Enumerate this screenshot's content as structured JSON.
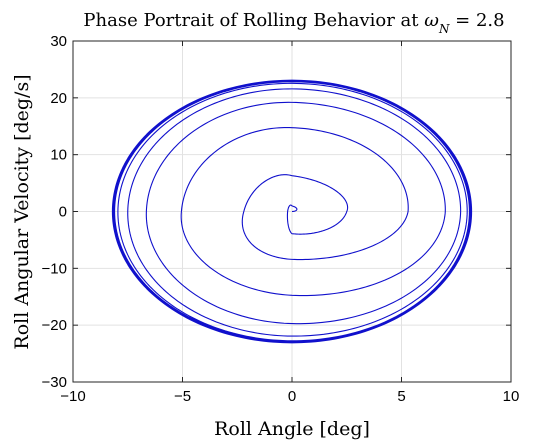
{
  "chart_data": {
    "type": "line",
    "title": "Phase Portrait of Rolling Behavior at ",
    "title_math": {
      "symbol": "ω",
      "subscript": "N",
      "suffix": " = 2.8"
    },
    "xlabel": "Roll Angle [deg]",
    "ylabel": "Roll Angular Velocity [deg/s]",
    "xlim": [
      -10,
      10
    ],
    "ylim": [
      -30,
      30
    ],
    "xticks": [
      -10,
      -5,
      0,
      5,
      10
    ],
    "xtick_labels": [
      "−10",
      "−5",
      "0",
      "5",
      "10"
    ],
    "yticks": [
      -30,
      -20,
      -10,
      0,
      10,
      20,
      30
    ],
    "ytick_labels": [
      "−30",
      "−20",
      "−10",
      "0",
      "10",
      "20",
      "30"
    ],
    "grid": true,
    "legend": null,
    "series": [
      {
        "line_color": "#1010cc",
        "description_of_curve": "phase trajectory spiraling outward from origin to a limit cycle",
        "origin": [
          0,
          0
        ],
        "limit_cycle": {
          "x_amplitude": 8.2,
          "y_amplitude": 23.1
        },
        "turns": [
          {
            "x_min": -0.4,
            "x_max": 2.5,
            "y_min": -5.2,
            "y_max": 3.9
          },
          {
            "x_min": -4.0,
            "x_max": 5.3,
            "y_min": -9.5,
            "y_max": 13.5
          },
          {
            "x_min": -6.1,
            "x_max": 7.0,
            "y_min": -16.5,
            "y_max": 18.5
          },
          {
            "x_min": -7.2,
            "x_max": 7.7,
            "y_min": -20.8,
            "y_max": 21.3
          },
          {
            "x_min": -7.8,
            "x_max": 8.0,
            "y_min": -22.3,
            "y_max": 22.4
          },
          {
            "x_min": -8.1,
            "x_max": 8.15,
            "y_min": -22.9,
            "y_max": 23.0
          },
          {
            "x_min": -8.2,
            "x_max": 8.2,
            "y_min": -23.1,
            "y_max": 23.1
          }
        ]
      }
    ]
  }
}
